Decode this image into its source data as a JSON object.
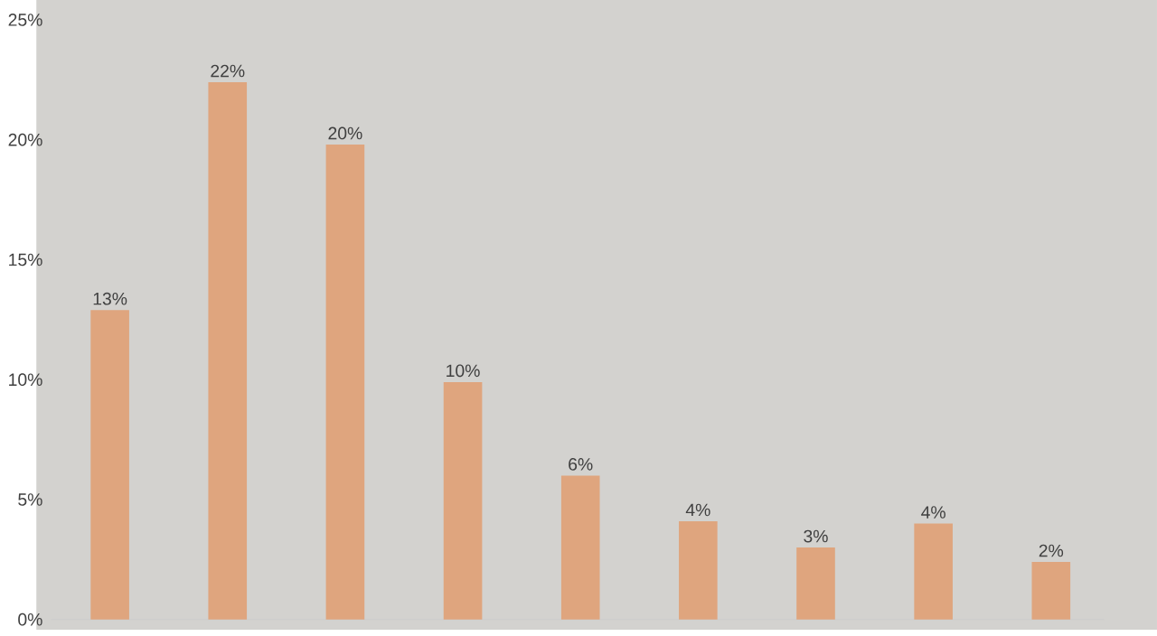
{
  "chart_data": {
    "type": "bar",
    "categories": [
      null,
      null,
      null,
      null,
      null,
      null,
      null,
      null,
      null
    ],
    "values": [
      12.9,
      22.4,
      19.8,
      9.9,
      6.0,
      4.1,
      3.0,
      4.0,
      2.4
    ],
    "value_labels": [
      "13%",
      "22%",
      "20%",
      "10%",
      "6%",
      "4%",
      "3%",
      "4%",
      "2%"
    ],
    "color": "#dfa57e",
    "ylim": [
      0,
      25
    ],
    "yticks": [
      {
        "value": 0,
        "label": "0%"
      },
      {
        "value": 5,
        "label": "5%"
      },
      {
        "value": 10,
        "label": "10%"
      },
      {
        "value": 15,
        "label": "15%"
      },
      {
        "value": 20,
        "label": "20%"
      },
      {
        "value": 25,
        "label": "25%"
      }
    ]
  }
}
